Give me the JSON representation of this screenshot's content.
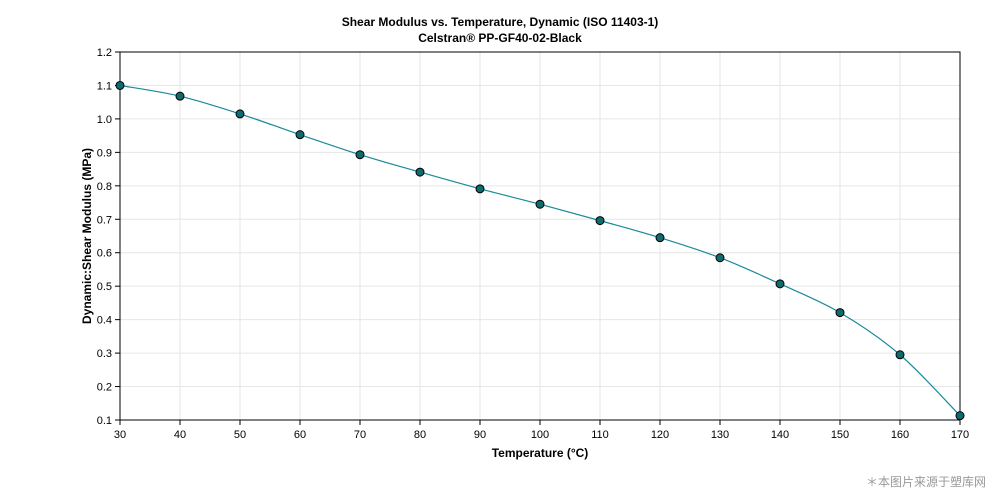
{
  "chart_data": {
    "type": "line",
    "title": "Shear Modulus vs. Temperature, Dynamic (ISO 11403-1)",
    "subtitle": "Celstran® PP-GF40-02-Black",
    "xlabel": "Temperature (°C)",
    "ylabel": "Dynamic:Shear Modulus (MPa)",
    "xlim": [
      30,
      170
    ],
    "ylim": [
      0.1,
      1.2
    ],
    "xticks": [
      30,
      40,
      50,
      60,
      70,
      80,
      90,
      100,
      110,
      120,
      130,
      140,
      150,
      160,
      170
    ],
    "yticks": [
      0.1,
      0.2,
      0.3,
      0.4,
      0.5,
      0.6,
      0.7,
      0.8,
      0.9,
      1.0,
      1.1,
      1.2
    ],
    "grid": true,
    "series": [
      {
        "x": [
          30,
          40,
          50,
          60,
          70,
          80,
          90,
          100,
          110,
          120,
          130,
          140,
          150,
          160,
          170
        ],
        "y": [
          1.1,
          1.068,
          1.015,
          0.953,
          0.893,
          0.841,
          0.791,
          0.745,
          0.696,
          0.645,
          0.585,
          0.507,
          0.421,
          0.295,
          0.113
        ],
        "color": "#1a8a9a",
        "marker_color": "#0e6b6e"
      }
    ]
  },
  "watermark": "＊本图片来源于塑库网"
}
